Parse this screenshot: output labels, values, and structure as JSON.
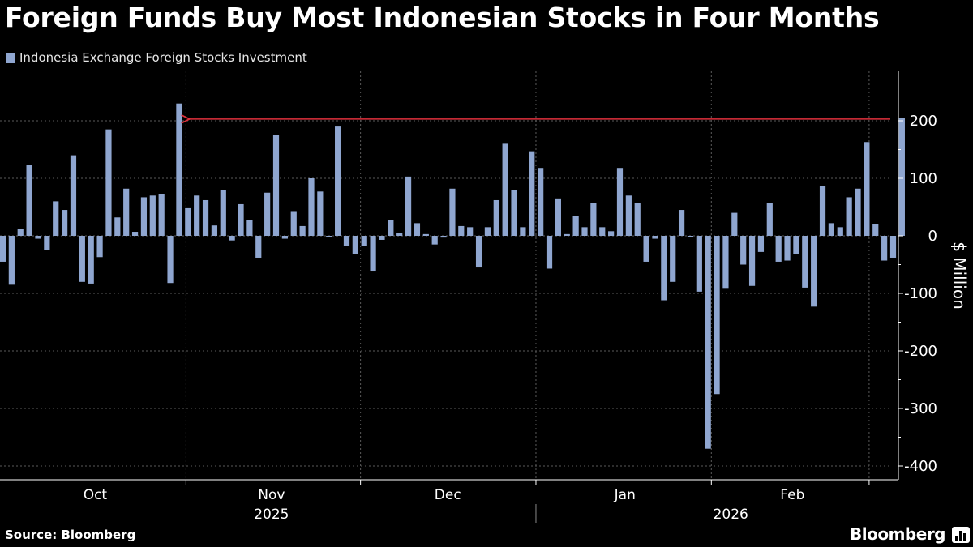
{
  "title": "Foreign Funds Buy Most Indonesian Stocks in Four Months",
  "source": "Source: Bloomberg",
  "brand": "Bloomberg",
  "colors": {
    "bar": "#8fa6d0",
    "arrow": "#e0303c",
    "grid": "#5a5a5a",
    "background": "#000000"
  },
  "icons": {
    "brand": "bar-chart-icon"
  },
  "chart_data": {
    "type": "bar",
    "series": [
      {
        "name": "Indonesia Exchange Foreign Stocks Investment"
      }
    ],
    "ylabel": "$ Million",
    "ylim": [
      -425,
      285
    ],
    "yticks": [
      200,
      100,
      0,
      -100,
      -200,
      -300,
      -400
    ],
    "xlim": [
      0,
      101
    ],
    "month_labels": [
      {
        "label": "Oct",
        "x": 10.8
      },
      {
        "label": "Nov",
        "x": 30.8
      },
      {
        "label": "Dec",
        "x": 50.8
      },
      {
        "label": "Jan",
        "x": 70.9
      },
      {
        "label": "Feb",
        "x": 89.9
      }
    ],
    "month_boundaries": [
      21.1,
      40.9,
      60.8,
      80.7,
      98.6
    ],
    "year_labels": [
      {
        "label": "2025",
        "x": 30.8
      },
      {
        "label": "2026",
        "x": 82.9
      }
    ],
    "year_divider": 60.8,
    "values": [
      -45,
      -85,
      12,
      123,
      -5,
      -25,
      60,
      45,
      140,
      -80,
      -83,
      -37,
      185,
      32,
      82,
      7,
      67,
      70,
      72,
      -82,
      230,
      48,
      70,
      62,
      18,
      80,
      -8,
      55,
      27,
      -38,
      75,
      175,
      -5,
      43,
      17,
      100,
      77,
      0,
      190,
      -18,
      -32,
      -17,
      -62,
      -7,
      28,
      5,
      103,
      22,
      3,
      -15,
      -3,
      82,
      17,
      15,
      -55,
      15,
      62,
      160,
      80,
      15,
      147,
      118,
      -57,
      65,
      3,
      35,
      15,
      57,
      15,
      8,
      118,
      70,
      57,
      -45,
      -5,
      -112,
      -80,
      45,
      0,
      -97,
      -370,
      -275,
      -92,
      40,
      -50,
      -87,
      -28,
      57,
      -45,
      -43,
      -32,
      -90,
      -123,
      87,
      22,
      15,
      67,
      82,
      163,
      20,
      -43,
      -38,
      205
    ],
    "annotations": [
      {
        "type": "arrow",
        "from_x": 101,
        "to_x": 21.4,
        "y": 203
      }
    ]
  }
}
